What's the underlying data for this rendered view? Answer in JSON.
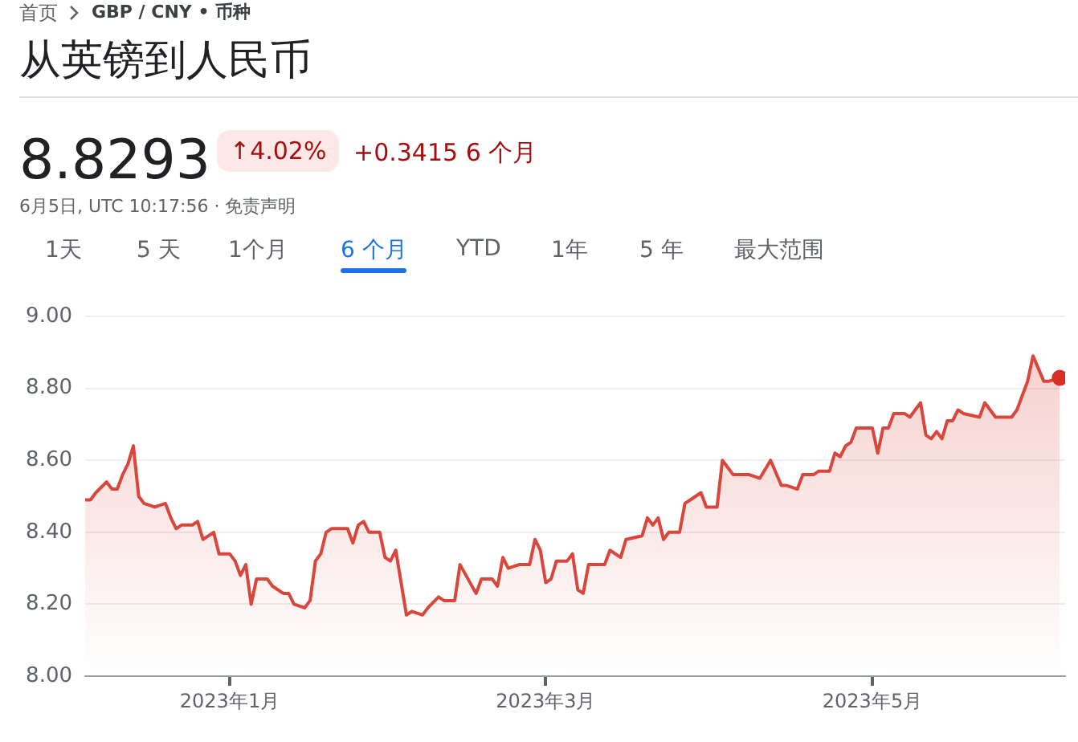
{
  "chart_data": {
    "type": "area",
    "title": "从英镑到人民币",
    "annotations": [
      "首页",
      "GBP / CNY • 币种",
      "8.8293",
      "↑4.02%",
      "+0.3415 6 个月",
      "6月5日, UTC 10:17:56 · 免责声明",
      "1天",
      "5 天",
      "1个月",
      "6 个月",
      "YTD",
      "1年",
      "5 年",
      "最大范围"
    ],
    "xlim": [
      "2022-12-05",
      "2023-06-06"
    ],
    "xticks": [
      {
        "value": "2023-01-01",
        "label": "2023年1月"
      },
      {
        "value": "2023-03-01",
        "label": "2023年3月"
      },
      {
        "value": "2023-05-01",
        "label": "2023年5月"
      }
    ],
    "ylim": [
      8,
      9
    ],
    "yticks": [
      {
        "value": 8,
        "label": "8.00"
      },
      {
        "value": 8.2,
        "label": "8.20"
      },
      {
        "value": 8.4,
        "label": "8.40"
      },
      {
        "value": 8.6,
        "label": "8.60"
      },
      {
        "value": 8.8,
        "label": "8.80"
      },
      {
        "value": 9,
        "label": "9.00"
      }
    ],
    "grid": "y",
    "legend": false,
    "series": [
      {
        "color": "#d9463b",
        "x": [
          "2022-12-05",
          "2022-12-06",
          "2022-12-07",
          "2022-12-09",
          "2022-12-10",
          "2022-12-11",
          "2022-12-12",
          "2022-12-13",
          "2022-12-14",
          "2022-12-15",
          "2022-12-16",
          "2022-12-18",
          "2022-12-20",
          "2022-12-21",
          "2022-12-22",
          "2022-12-23",
          "2022-12-25",
          "2022-12-26",
          "2022-12-27",
          "2022-12-29",
          "2022-12-30",
          "2023-01-01",
          "2023-01-02",
          "2023-01-03",
          "2023-01-04",
          "2023-01-05",
          "2023-01-06",
          "2023-01-08",
          "2023-01-09",
          "2023-01-11",
          "2023-01-12",
          "2023-01-13",
          "2023-01-15",
          "2023-01-16",
          "2023-01-17",
          "2023-01-18",
          "2023-01-19",
          "2023-01-20",
          "2023-01-23",
          "2023-01-24",
          "2023-01-25",
          "2023-01-26",
          "2023-01-27",
          "2023-01-29",
          "2023-01-30",
          "2023-01-31",
          "2023-02-01",
          "2023-02-03",
          "2023-02-04",
          "2023-02-06",
          "2023-02-07",
          "2023-02-09",
          "2023-02-10",
          "2023-02-12",
          "2023-02-13",
          "2023-02-16",
          "2023-02-17",
          "2023-02-19",
          "2023-02-20",
          "2023-02-21",
          "2023-02-22",
          "2023-02-24",
          "2023-02-26",
          "2023-02-27",
          "2023-02-28",
          "2023-03-01",
          "2023-03-02",
          "2023-03-03",
          "2023-03-05",
          "2023-03-06",
          "2023-03-07",
          "2023-03-08",
          "2023-03-09",
          "2023-03-11",
          "2023-03-12",
          "2023-03-13",
          "2023-03-15",
          "2023-03-16",
          "2023-03-19",
          "2023-03-20",
          "2023-03-21",
          "2023-03-22",
          "2023-03-23",
          "2023-03-24",
          "2023-03-26",
          "2023-03-27",
          "2023-03-28",
          "2023-03-30",
          "2023-03-31",
          "2023-04-02",
          "2023-04-03",
          "2023-04-05",
          "2023-04-08",
          "2023-04-10",
          "2023-04-12",
          "2023-04-14",
          "2023-04-15",
          "2023-04-17",
          "2023-04-18",
          "2023-04-20",
          "2023-04-21",
          "2023-04-23",
          "2023-04-24",
          "2023-04-25",
          "2023-04-26",
          "2023-04-27",
          "2023-04-28",
          "2023-04-30",
          "2023-05-01",
          "2023-05-02",
          "2023-05-03",
          "2023-05-04",
          "2023-05-05",
          "2023-05-07",
          "2023-05-08",
          "2023-05-10",
          "2023-05-11",
          "2023-05-12",
          "2023-05-13",
          "2023-05-14",
          "2023-05-15",
          "2023-05-16",
          "2023-05-17",
          "2023-05-18",
          "2023-05-21",
          "2023-05-22",
          "2023-05-24",
          "2023-05-27",
          "2023-05-28",
          "2023-05-30",
          "2023-05-31",
          "2023-06-02",
          "2023-06-03",
          "2023-06-05"
        ],
        "values": [
          8.49,
          8.49,
          8.51,
          8.54,
          8.52,
          8.52,
          8.56,
          8.59,
          8.64,
          8.5,
          8.48,
          8.47,
          8.48,
          8.44,
          8.41,
          8.42,
          8.42,
          8.43,
          8.38,
          8.4,
          8.34,
          8.34,
          8.32,
          8.28,
          8.31,
          8.2,
          8.27,
          8.27,
          8.25,
          8.23,
          8.23,
          8.2,
          8.19,
          8.21,
          8.32,
          8.34,
          8.4,
          8.41,
          8.41,
          8.37,
          8.42,
          8.43,
          8.4,
          8.4,
          8.33,
          8.32,
          8.35,
          8.17,
          8.18,
          8.17,
          8.19,
          8.22,
          8.21,
          8.21,
          8.31,
          8.23,
          8.27,
          8.27,
          8.25,
          8.33,
          8.3,
          8.31,
          8.31,
          8.38,
          8.35,
          8.26,
          8.27,
          8.32,
          8.32,
          8.34,
          8.24,
          8.23,
          8.31,
          8.31,
          8.31,
          8.35,
          8.33,
          8.38,
          8.39,
          8.44,
          8.42,
          8.44,
          8.38,
          8.4,
          8.4,
          8.48,
          8.49,
          8.51,
          8.47,
          8.47,
          8.6,
          8.56,
          8.56,
          8.55,
          8.6,
          8.53,
          8.53,
          8.52,
          8.56,
          8.56,
          8.57,
          8.57,
          8.62,
          8.61,
          8.64,
          8.65,
          8.69,
          8.69,
          8.69,
          8.62,
          8.69,
          8.69,
          8.73,
          8.73,
          8.72,
          8.76,
          8.67,
          8.66,
          8.68,
          8.66,
          8.71,
          8.71,
          8.74,
          8.73,
          8.72,
          8.76,
          8.72,
          8.72,
          8.74,
          8.82,
          8.89,
          8.82,
          8.82,
          8.8293
        ]
      },
      {
        "type": "scatter",
        "marker": "circle",
        "color": "#d93025",
        "x": [
          "2023-06-05"
        ],
        "values": [
          8.8293
        ]
      }
    ]
  }
}
